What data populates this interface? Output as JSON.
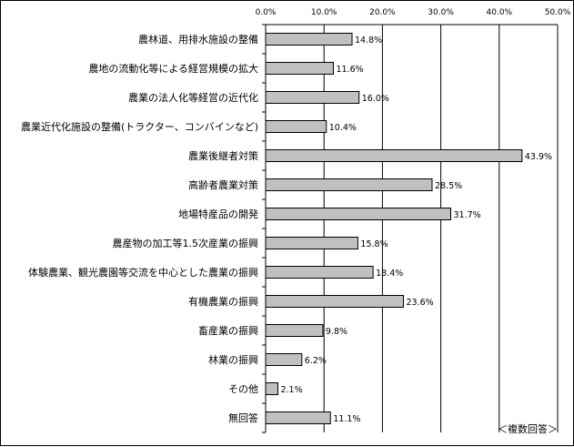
{
  "chart_data": {
    "type": "bar",
    "orientation": "horizontal",
    "title": "",
    "xlabel": "",
    "ylabel": "",
    "xlim": [
      0,
      50
    ],
    "x_ticks": [
      "0.0%",
      "10.0%",
      "20.0%",
      "30.0%",
      "40.0%",
      "50.0%"
    ],
    "grid": true,
    "categories": [
      "農林道、用排水施設の整備",
      "農地の流動化等による経営規模の拡大",
      "農業の法人化等経営の近代化",
      "農業近代化施設の整備(トラクター、コンバインなど)",
      "農業後継者対策",
      "高齢者農業対策",
      "地場特産品の開発",
      "農産物の加工等1.5次産業の振興",
      "体験農業、観光農園等交流を中心とした農業の振興",
      "有機農業の振興",
      "畜産業の振興",
      "林業の振興",
      "その他",
      "無回答"
    ],
    "values": [
      14.8,
      11.6,
      16.0,
      10.4,
      43.9,
      28.5,
      31.7,
      15.8,
      18.4,
      23.6,
      9.8,
      6.2,
      2.1,
      11.1
    ],
    "value_labels": [
      "14.8%",
      "11.6%",
      "16.0%",
      "10.4%",
      "43.9%",
      "28.5%",
      "31.7%",
      "15.8%",
      "18.4%",
      "23.6%",
      "9.8%",
      "6.2%",
      "2.1%",
      "11.1%"
    ],
    "bar_color": "#c0c0c0",
    "bar_edge_color": "#000000",
    "annotation": "＜複数回答＞"
  }
}
